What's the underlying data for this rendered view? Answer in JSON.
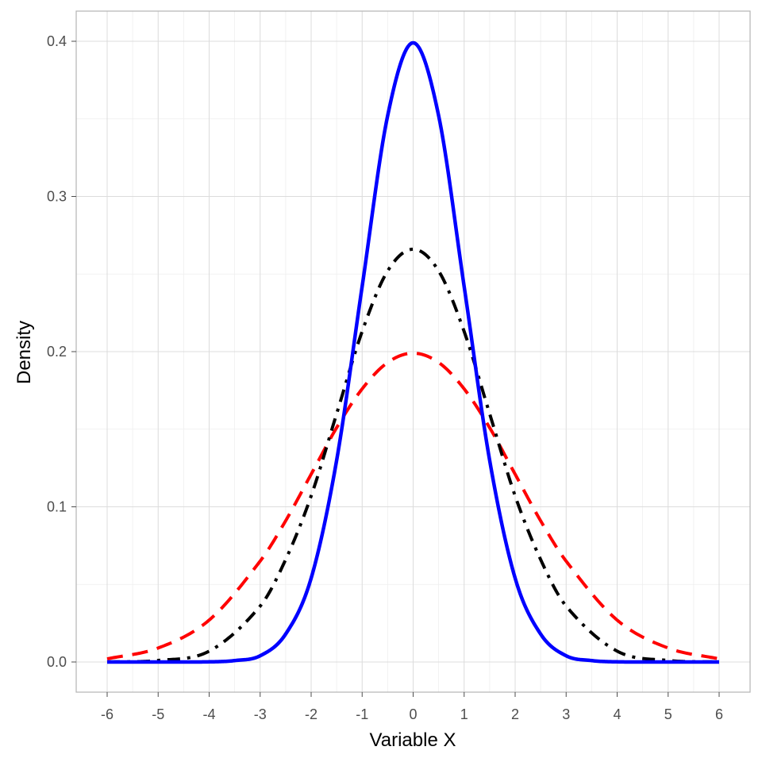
{
  "chart_data": {
    "type": "line",
    "title": "",
    "xlabel": "Variable X",
    "ylabel": "Density",
    "xlim": [
      -6,
      6
    ],
    "ylim": [
      0,
      0.4
    ],
    "x_ticks": [
      "-6",
      "-5",
      "-4",
      "-3",
      "-2",
      "-1",
      "0",
      "1",
      "2",
      "3",
      "4",
      "5",
      "6"
    ],
    "y_ticks": [
      "0.0",
      "0.1",
      "0.2",
      "0.3",
      "0.4"
    ],
    "grid": true,
    "legend": "none",
    "series": [
      {
        "color": "#ff0000",
        "linestyle": "dashed",
        "x": [
          -6,
          -5,
          -4,
          -3,
          -2.5,
          -2,
          -1.5,
          -1,
          -0.5,
          0,
          0.5,
          1,
          1.5,
          2,
          2.5,
          3,
          4,
          5,
          6
        ],
        "values": [
          0.002,
          0.009,
          0.027,
          0.065,
          0.091,
          0.121,
          0.151,
          0.176,
          0.193,
          0.199,
          0.193,
          0.176,
          0.151,
          0.121,
          0.091,
          0.065,
          0.027,
          0.009,
          0.002
        ]
      },
      {
        "color": "#000000",
        "linestyle": "dashdot",
        "x": [
          -6,
          -5,
          -4,
          -3,
          -2.5,
          -2,
          -1.5,
          -1,
          -0.5,
          0,
          0.5,
          1,
          1.5,
          2,
          2.5,
          3,
          4,
          5,
          6
        ],
        "values": [
          0.0,
          0.001,
          0.007,
          0.036,
          0.066,
          0.107,
          0.16,
          0.213,
          0.252,
          0.266,
          0.252,
          0.213,
          0.16,
          0.107,
          0.066,
          0.036,
          0.007,
          0.001,
          0.0
        ]
      },
      {
        "color": "#0000ff",
        "linestyle": "solid",
        "x": [
          -6,
          -5,
          -4,
          -3.5,
          -3,
          -2.5,
          -2,
          -1.5,
          -1,
          -0.5,
          0,
          0.5,
          1,
          1.5,
          2,
          2.5,
          3,
          3.5,
          4,
          5,
          6
        ],
        "values": [
          0.0,
          0.0,
          0.0001,
          0.0009,
          0.004,
          0.018,
          0.054,
          0.13,
          0.242,
          0.352,
          0.399,
          0.352,
          0.242,
          0.13,
          0.054,
          0.018,
          0.004,
          0.0009,
          0.0001,
          0.0,
          0.0
        ]
      }
    ]
  }
}
